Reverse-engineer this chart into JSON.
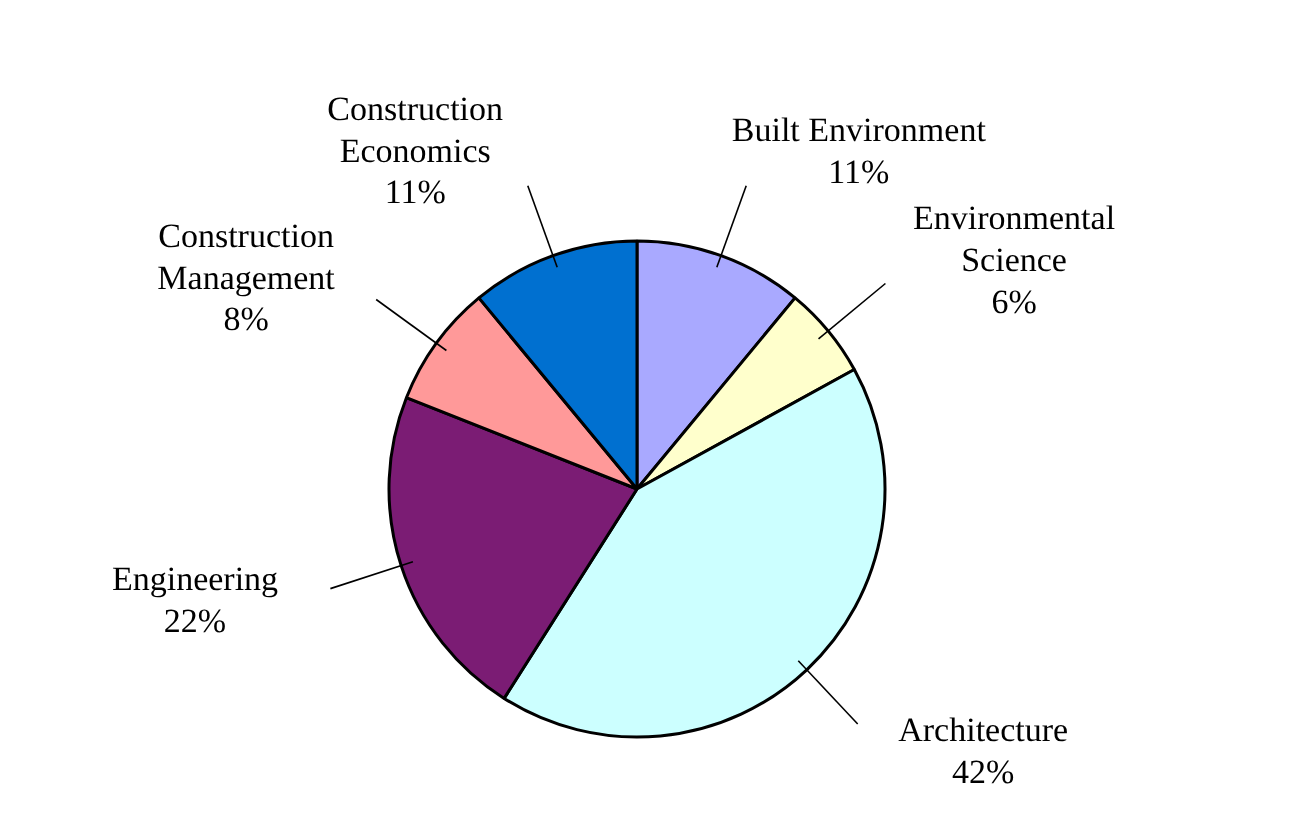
{
  "chart_data": {
    "type": "pie",
    "categories": [
      "Built Environment",
      "Environmental Science",
      "Architecture",
      "Engineering",
      "Construction Management",
      "Construction Economics"
    ],
    "values": [
      11,
      6,
      42,
      22,
      8,
      11
    ],
    "value_labels": [
      "11%",
      "6%",
      "42%",
      "22%",
      "8%",
      "11%"
    ],
    "colors": [
      "#a9a9ff",
      "#ffffcc",
      "#ccffff",
      "#7b1c74",
      "#ff9999",
      "#0070d0"
    ]
  }
}
